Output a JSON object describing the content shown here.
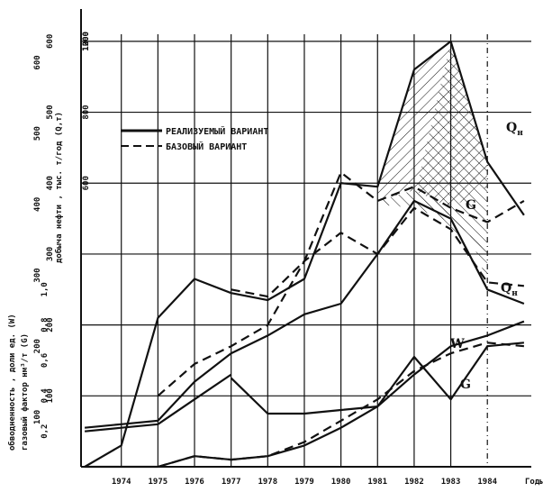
{
  "chart_data": {
    "type": "line",
    "x_label": "Годы",
    "x_ticks": [
      "1974",
      "1975",
      "1976",
      "1977",
      "1978",
      "1979",
      "1980",
      "1981",
      "1982",
      "1983",
      "1984"
    ],
    "axes": {
      "oil_top": {
        "label": "добыча нефти , тыс. т/год (Q,т)",
        "ticks": [
          "600",
          "800",
          "1000",
          "1200"
        ]
      },
      "oil_bottom": {
        "ticks": [
          "100",
          "200",
          "300",
          "400",
          "500",
          "600"
        ]
      },
      "water_cut": {
        "label": "обводненность , доли ед. (W)",
        "ticks": [
          "0,2",
          "0,4",
          "0,6",
          "0,8",
          "1,0"
        ]
      },
      "gas_factor": {
        "label": "газовый фактор нм³/т (G)",
        "ticks": [
          "100",
          "200",
          "300",
          "400",
          "500",
          "600"
        ]
      }
    },
    "legend": [
      {
        "label": "РЕАЛИЗУЕМЫЙ ВАРИАНТ",
        "style": "solid"
      },
      {
        "label": "БАЗОВЫЙ ВАРИАНТ",
        "style": "dashed"
      }
    ],
    "curve_labels": {
      "q_upper": "Q",
      "q_upper_sub": "н",
      "g_mid": "G",
      "q_lower": "Q",
      "q_lower_sub": "н",
      "w": "W",
      "g_low": "G"
    },
    "y_units": "grid divisions (0 at x-axis, 1 per horizontal gridline)",
    "x_domain": [
      1972.9,
      1985.2
    ],
    "y_domain": [
      0,
      6.1
    ],
    "series": [
      {
        "key": "Q_realized",
        "style": "solid",
        "x": [
          1973,
          1973.5,
          1974,
          1975,
          1976,
          1977,
          1978,
          1979,
          1980,
          1981,
          1982,
          1983,
          1984,
          1985
        ],
        "y": [
          0,
          0.15,
          0.85,
          1.25,
          1.95,
          2.15,
          2.4,
          4.25,
          4.9,
          5.9,
          5.0,
          6.0,
          4.25,
          3.55
        ]
      },
      {
        "key": "Q_base",
        "style": "dashed",
        "x": [
          1976.5,
          1977,
          1978,
          1979,
          1980,
          1981,
          1982,
          1983,
          1984,
          1985
        ],
        "y": [
          0.85,
          1.05,
          1.4,
          1.9,
          3.75,
          3.75,
          3.95,
          3.65,
          3.5,
          3.7
        ]
      },
      {
        "key": "Q_lower_solid",
        "style": "solid",
        "x": [
          1974,
          1974.25,
          1975,
          1976,
          1977,
          1978,
          1979,
          1980,
          1981
        ],
        "y": [
          1.06,
          1.05,
          1.13,
          1.98,
          3.13,
          3.0,
          2.46,
          0.75,
          0.2
        ]
      },
      {
        "key": "Q_lower_dashed",
        "style": "dashed",
        "x": [
          1974.25,
          1975,
          1976,
          1977,
          1978,
          1979,
          1980,
          1981,
          1982,
          1983,
          1984
        ],
        "y": [
          2.0,
          2.25,
          2.55,
          3.15,
          3.3,
          3.72,
          4.2,
          4.45,
          4.55,
          4.55,
          4.0
        ]
      },
      {
        "key": "W_mixed",
        "style": "solid",
        "x": [
          1973,
          1974,
          1975,
          1976,
          1977,
          1978
        ],
        "y": [
          0.7,
          0.9,
          1.1,
          0.85,
          0.45,
          0.6
        ]
      }
    ]
  }
}
